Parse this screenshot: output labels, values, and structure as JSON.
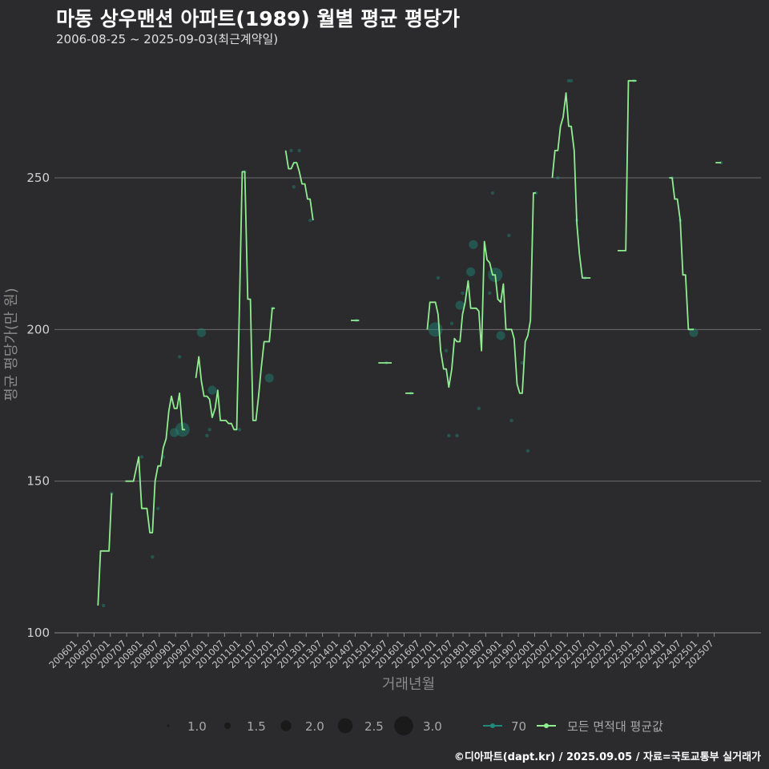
{
  "chart_data": {
    "type": "line",
    "title": "마동 상우맨션 아파트(1989) 월별 평균 평당가",
    "subtitle": "2006-08-25 ~ 2025-09-03(최근계약일)",
    "xlabel": "거래년월",
    "ylabel": "평균 평당가(만 원)",
    "ylim": [
      100,
      283
    ],
    "yticks": [
      100,
      150,
      200,
      250
    ],
    "xticks": [
      "200601",
      "200607",
      "200701",
      "200707",
      "200801",
      "200807",
      "200901",
      "200907",
      "201001",
      "201007",
      "201101",
      "201107",
      "201201",
      "201207",
      "201301",
      "201307",
      "201401",
      "201407",
      "201501",
      "201507",
      "201601",
      "201607",
      "201701",
      "201707",
      "201801",
      "201807",
      "201901",
      "201907",
      "202001",
      "202007",
      "202101",
      "202107",
      "202201",
      "202207",
      "202301",
      "202307",
      "202401",
      "202407",
      "202501",
      "202507"
    ],
    "series": [
      {
        "name": "모든 면적대 평균값",
        "color": "#90ee90",
        "segments": [
          [
            [
              2006.62,
              109
            ],
            [
              2006.7,
              127
            ],
            [
              2006.79,
              127
            ],
            [
              2006.87,
              127
            ],
            [
              2006.96,
              127
            ],
            [
              2007.04,
              146
            ]
          ],
          [
            [
              2007.46,
              150
            ],
            [
              2007.54,
              150
            ],
            [
              2007.62,
              150
            ],
            [
              2007.71,
              150
            ],
            [
              2007.79,
              154
            ],
            [
              2007.87,
              158
            ],
            [
              2007.96,
              141
            ],
            [
              2008.04,
              141
            ],
            [
              2008.12,
              141
            ],
            [
              2008.21,
              133
            ],
            [
              2008.29,
              133
            ],
            [
              2008.37,
              150
            ],
            [
              2008.46,
              155
            ],
            [
              2008.54,
              155
            ],
            [
              2008.62,
              161
            ],
            [
              2008.71,
              164
            ],
            [
              2008.79,
              173
            ],
            [
              2008.87,
              178
            ],
            [
              2008.96,
              174
            ],
            [
              2009.04,
              174
            ],
            [
              2009.12,
              179
            ],
            [
              2009.21,
              167
            ],
            [
              2009.29,
              167
            ]
          ],
          [
            [
              2009.62,
              184
            ],
            [
              2009.71,
              191
            ],
            [
              2009.79,
              183
            ],
            [
              2009.87,
              178
            ],
            [
              2009.96,
              178
            ],
            [
              2010.04,
              177
            ],
            [
              2010.12,
              171
            ],
            [
              2010.21,
              174
            ],
            [
              2010.29,
              180
            ],
            [
              2010.37,
              170
            ],
            [
              2010.46,
              170
            ],
            [
              2010.54,
              170
            ],
            [
              2010.62,
              169
            ],
            [
              2010.71,
              169
            ],
            [
              2010.79,
              167
            ],
            [
              2010.87,
              167
            ],
            [
              2010.96,
              210
            ],
            [
              2011.04,
              252
            ],
            [
              2011.12,
              252
            ],
            [
              2011.21,
              210
            ],
            [
              2011.29,
              210
            ],
            [
              2011.37,
              170
            ],
            [
              2011.46,
              170
            ],
            [
              2011.54,
              178
            ],
            [
              2011.62,
              187
            ],
            [
              2011.71,
              196
            ],
            [
              2011.79,
              196
            ],
            [
              2011.87,
              196
            ],
            [
              2011.96,
              207
            ],
            [
              2012.04,
              207
            ]
          ],
          [
            [
              2012.37,
              259
            ],
            [
              2012.46,
              253
            ],
            [
              2012.54,
              253
            ],
            [
              2012.62,
              255
            ],
            [
              2012.71,
              255
            ],
            [
              2012.79,
              252
            ],
            [
              2012.87,
              248
            ],
            [
              2012.96,
              248
            ],
            [
              2013.04,
              243
            ],
            [
              2013.12,
              243
            ],
            [
              2013.21,
              236
            ]
          ],
          [
            [
              2014.37,
              203
            ],
            [
              2014.46,
              203
            ],
            [
              2014.54,
              203
            ],
            [
              2014.62,
              203
            ]
          ],
          [
            [
              2015.21,
              189
            ],
            [
              2015.29,
              189
            ],
            [
              2015.37,
              189
            ],
            [
              2015.46,
              189
            ],
            [
              2015.54,
              189
            ],
            [
              2015.62,
              189
            ]
          ],
          [
            [
              2016.04,
              179
            ],
            [
              2016.12,
              179
            ],
            [
              2016.21,
              179
            ],
            [
              2016.29,
              179
            ]
          ],
          [
            [
              2016.71,
              200
            ],
            [
              2016.79,
              209
            ],
            [
              2016.87,
              209
            ],
            [
              2016.96,
              209
            ],
            [
              2017.04,
              205
            ],
            [
              2017.12,
              193
            ],
            [
              2017.21,
              187
            ],
            [
              2017.29,
              187
            ],
            [
              2017.37,
              181
            ],
            [
              2017.46,
              187
            ],
            [
              2017.54,
              197
            ],
            [
              2017.62,
              196
            ],
            [
              2017.71,
              196
            ],
            [
              2017.79,
              205
            ],
            [
              2017.87,
              209
            ],
            [
              2017.96,
              216
            ],
            [
              2018.04,
              207
            ],
            [
              2018.12,
              207
            ],
            [
              2018.21,
              207
            ],
            [
              2018.29,
              206
            ],
            [
              2018.37,
              193
            ],
            [
              2018.46,
              229
            ],
            [
              2018.54,
              223
            ],
            [
              2018.62,
              222
            ],
            [
              2018.71,
              218
            ],
            [
              2018.79,
              218
            ],
            [
              2018.87,
              210
            ],
            [
              2018.96,
              209
            ],
            [
              2019.04,
              215
            ],
            [
              2019.12,
              200
            ],
            [
              2019.21,
              200
            ],
            [
              2019.29,
              200
            ],
            [
              2019.37,
              197
            ],
            [
              2019.46,
              182
            ],
            [
              2019.54,
              179
            ],
            [
              2019.62,
              179
            ],
            [
              2019.71,
              196
            ],
            [
              2019.79,
              198
            ],
            [
              2019.87,
              203
            ],
            [
              2019.96,
              245
            ],
            [
              2020.04,
              245
            ]
          ],
          [
            [
              2020.54,
              250
            ],
            [
              2020.62,
              259
            ],
            [
              2020.71,
              259
            ],
            [
              2020.79,
              267
            ],
            [
              2020.87,
              270
            ],
            [
              2020.96,
              278
            ],
            [
              2021.04,
              267
            ],
            [
              2021.12,
              267
            ],
            [
              2021.21,
              259
            ],
            [
              2021.29,
              235
            ],
            [
              2021.37,
              225
            ],
            [
              2021.46,
              217
            ],
            [
              2021.54,
              217
            ],
            [
              2021.62,
              217
            ],
            [
              2021.71,
              217
            ]
          ],
          [
            [
              2022.54,
              226
            ],
            [
              2022.62,
              226
            ],
            [
              2022.71,
              226
            ],
            [
              2022.79,
              226
            ],
            [
              2022.87,
              282
            ],
            [
              2022.96,
              282
            ],
            [
              2023.04,
              282
            ],
            [
              2023.12,
              282
            ]
          ],
          [
            [
              2024.12,
              250
            ],
            [
              2024.21,
              250
            ],
            [
              2024.29,
              243
            ],
            [
              2024.37,
              243
            ],
            [
              2024.46,
              236
            ],
            [
              2024.54,
              218
            ],
            [
              2024.62,
              218
            ],
            [
              2024.71,
              200
            ],
            [
              2024.79,
              200
            ],
            [
              2024.87,
              200
            ]
          ],
          [
            [
              2025.54,
              255
            ],
            [
              2025.62,
              255
            ],
            [
              2025.71,
              255
            ]
          ]
        ]
      },
      {
        "name": "70",
        "color": "#1e8a7a",
        "points": [
          [
            2006.79,
            109,
            1
          ],
          [
            2007.04,
            146,
            1
          ],
          [
            2007.96,
            158,
            1
          ],
          [
            2008.29,
            125,
            1
          ],
          [
            2008.46,
            141,
            1
          ],
          [
            2008.62,
            158,
            1
          ],
          [
            2008.96,
            166,
            2
          ],
          [
            2009.12,
            191,
            1
          ],
          [
            2009.21,
            167,
            3
          ],
          [
            2009.79,
            199,
            2
          ],
          [
            2009.96,
            165,
            1
          ],
          [
            2010.04,
            167,
            1
          ],
          [
            2010.12,
            180,
            2
          ],
          [
            2010.96,
            167,
            1
          ],
          [
            2011.12,
            252,
            1
          ],
          [
            2011.87,
            184,
            2
          ],
          [
            2011.96,
            207,
            1
          ],
          [
            2012.54,
            259,
            1
          ],
          [
            2012.62,
            247,
            1
          ],
          [
            2012.79,
            259,
            1
          ],
          [
            2013.12,
            236,
            1
          ],
          [
            2014.54,
            203,
            1
          ],
          [
            2015.46,
            189,
            1
          ],
          [
            2016.21,
            179,
            1
          ],
          [
            2016.96,
            200,
            3
          ],
          [
            2017.04,
            217,
            1
          ],
          [
            2017.29,
            193,
            1
          ],
          [
            2017.37,
            165,
            1
          ],
          [
            2017.46,
            202,
            1
          ],
          [
            2017.62,
            165,
            1
          ],
          [
            2017.71,
            208,
            2
          ],
          [
            2017.79,
            212,
            1
          ],
          [
            2018.04,
            219,
            2
          ],
          [
            2018.12,
            228,
            2
          ],
          [
            2018.29,
            174,
            1
          ],
          [
            2018.62,
            212,
            1
          ],
          [
            2018.71,
            245,
            1
          ],
          [
            2018.79,
            218,
            3
          ],
          [
            2018.96,
            198,
            2
          ],
          [
            2019.21,
            231,
            1
          ],
          [
            2019.29,
            170,
            1
          ],
          [
            2019.62,
            189,
            1
          ],
          [
            2019.79,
            160,
            1
          ],
          [
            2020.04,
            245,
            1
          ],
          [
            2020.71,
            250,
            1
          ],
          [
            2021.04,
            282,
            1
          ],
          [
            2021.12,
            282,
            1
          ],
          [
            2021.29,
            236,
            1
          ],
          [
            2021.54,
            217,
            1
          ],
          [
            2023.04,
            282,
            1
          ],
          [
            2024.21,
            250,
            1
          ],
          [
            2024.46,
            236,
            1
          ],
          [
            2024.87,
            199,
            2
          ],
          [
            2025.71,
            255,
            1
          ]
        ]
      }
    ],
    "size_legend": {
      "values": [
        "1.0",
        "1.5",
        "2.0",
        "2.5",
        "3.0"
      ]
    },
    "legend": [
      "70",
      "모든 면적대 평균값"
    ]
  },
  "credit": "©디아파트(dapt.kr) / 2025.09.05 / 자료=국토교통부 실거래가"
}
